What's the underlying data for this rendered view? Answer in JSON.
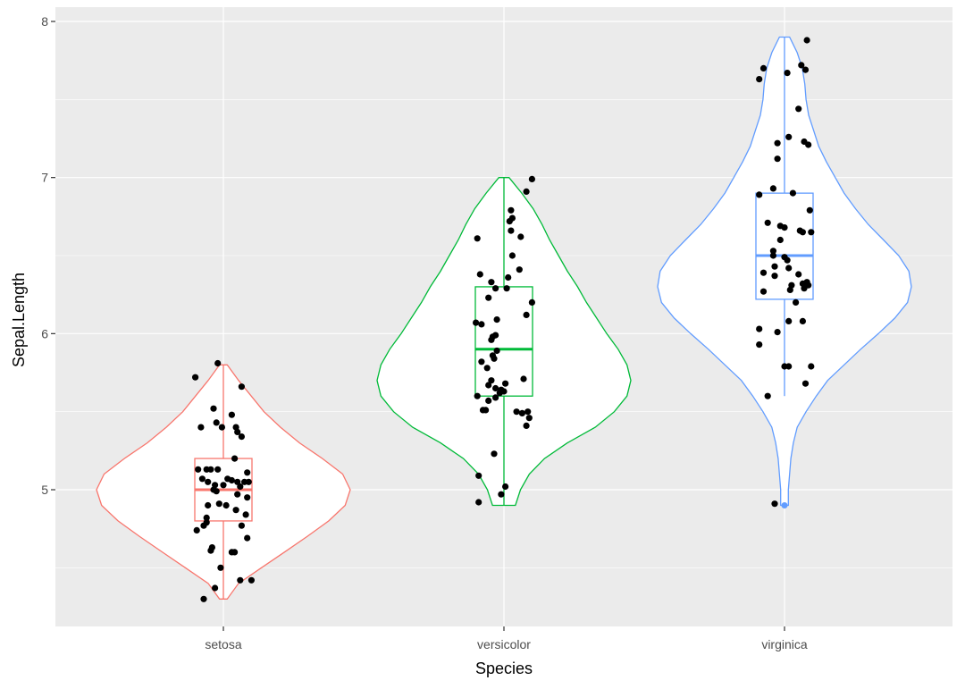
{
  "chart_data": {
    "type": "violin",
    "title": "",
    "xlabel": "Species",
    "ylabel": "Sepal.Length",
    "categories": [
      "setosa",
      "versicolor",
      "virginica"
    ],
    "ylim": [
      4.2,
      8.1
    ],
    "y_ticks": [
      5,
      6,
      7,
      8
    ],
    "y_tick_labels": [
      "5",
      "6",
      "7",
      "8"
    ],
    "grid": true,
    "legend": "none",
    "colors": {
      "panel_bg": "#ebebeb",
      "grid_major": "#ffffff",
      "setosa": "#f8766d",
      "versicolor": "#00ba38",
      "virginica": "#619cff",
      "points": "#000000"
    },
    "series": [
      {
        "category": "setosa",
        "color": "#f8766d",
        "box": {
          "min": 4.3,
          "q1": 4.8,
          "median": 5.0,
          "q3": 5.2,
          "max": 5.8
        },
        "outliers": [],
        "violin": [
          [
            4.3,
            0.03
          ],
          [
            4.4,
            0.12
          ],
          [
            4.5,
            0.3
          ],
          [
            4.6,
            0.48
          ],
          [
            4.7,
            0.66
          ],
          [
            4.8,
            0.83
          ],
          [
            4.9,
            0.96
          ],
          [
            5.0,
            1.0
          ],
          [
            5.1,
            0.94
          ],
          [
            5.2,
            0.78
          ],
          [
            5.3,
            0.6
          ],
          [
            5.4,
            0.45
          ],
          [
            5.5,
            0.32
          ],
          [
            5.6,
            0.22
          ],
          [
            5.7,
            0.12
          ],
          [
            5.8,
            0.03
          ]
        ],
        "points": [
          [
            -0.14,
            4.3
          ],
          [
            -0.06,
            4.37
          ],
          [
            -0.02,
            4.5
          ],
          [
            0.12,
            4.42
          ],
          [
            0.2,
            4.42
          ],
          [
            -0.09,
            4.61
          ],
          [
            -0.08,
            4.63
          ],
          [
            0.06,
            4.6
          ],
          [
            0.08,
            4.6
          ],
          [
            0.13,
            4.77
          ],
          [
            0.17,
            4.69
          ],
          [
            -0.19,
            4.74
          ],
          [
            -0.14,
            4.77
          ],
          [
            -0.12,
            4.79
          ],
          [
            -0.12,
            4.82
          ],
          [
            -0.11,
            4.9
          ],
          [
            -0.03,
            4.91
          ],
          [
            0.02,
            4.9
          ],
          [
            0.09,
            4.87
          ],
          [
            0.16,
            4.84
          ],
          [
            -0.18,
            5.13
          ],
          [
            -0.15,
            5.07
          ],
          [
            -0.11,
            5.05
          ],
          [
            -0.12,
            5.13
          ],
          [
            -0.07,
            5.0
          ],
          [
            -0.06,
            5.03
          ],
          [
            -0.09,
            5.13
          ],
          [
            -0.05,
            4.99
          ],
          [
            -0.04,
            5.13
          ],
          [
            0.0,
            5.03
          ],
          [
            0.03,
            5.07
          ],
          [
            0.06,
            5.06
          ],
          [
            0.08,
            5.2
          ],
          [
            0.1,
            5.05
          ],
          [
            0.1,
            4.97
          ],
          [
            0.12,
            5.02
          ],
          [
            0.15,
            5.05
          ],
          [
            0.17,
            5.11
          ],
          [
            0.18,
            5.05
          ],
          [
            0.17,
            4.95
          ],
          [
            -0.16,
            5.4
          ],
          [
            -0.07,
            5.52
          ],
          [
            -0.05,
            5.43
          ],
          [
            -0.01,
            5.4
          ],
          [
            0.06,
            5.48
          ],
          [
            0.09,
            5.4
          ],
          [
            0.1,
            5.37
          ],
          [
            0.13,
            5.34
          ],
          [
            0.13,
            5.66
          ],
          [
            -0.2,
            5.72
          ],
          [
            -0.04,
            5.81
          ]
        ]
      },
      {
        "category": "versicolor",
        "color": "#00ba38",
        "box": {
          "min": 4.9,
          "q1": 5.6,
          "median": 5.9,
          "q3": 6.3,
          "max": 7.0
        },
        "outliers": [],
        "violin": [
          [
            4.9,
            0.09
          ],
          [
            5.0,
            0.13
          ],
          [
            5.1,
            0.2
          ],
          [
            5.2,
            0.32
          ],
          [
            5.3,
            0.5
          ],
          [
            5.4,
            0.72
          ],
          [
            5.5,
            0.87
          ],
          [
            5.6,
            0.97
          ],
          [
            5.7,
            1.0
          ],
          [
            5.8,
            0.97
          ],
          [
            5.9,
            0.9
          ],
          [
            6.0,
            0.81
          ],
          [
            6.1,
            0.73
          ],
          [
            6.2,
            0.65
          ],
          [
            6.3,
            0.58
          ],
          [
            6.4,
            0.5
          ],
          [
            6.5,
            0.43
          ],
          [
            6.6,
            0.36
          ],
          [
            6.7,
            0.3
          ],
          [
            6.8,
            0.23
          ],
          [
            6.9,
            0.14
          ],
          [
            7.0,
            0.04
          ]
        ],
        "points": [
          [
            -0.18,
            4.92
          ],
          [
            -0.07,
            5.23
          ],
          [
            0.01,
            5.02
          ],
          [
            -0.02,
            4.97
          ],
          [
            -0.18,
            5.09
          ],
          [
            -0.15,
            5.51
          ],
          [
            -0.13,
            5.51
          ],
          [
            -0.19,
            5.6
          ],
          [
            -0.11,
            5.57
          ],
          [
            -0.12,
            5.78
          ],
          [
            -0.16,
            5.82
          ],
          [
            -0.11,
            5.67
          ],
          [
            -0.09,
            5.7
          ],
          [
            -0.06,
            5.59
          ],
          [
            -0.06,
            5.65
          ],
          [
            -0.03,
            5.62
          ],
          [
            -0.02,
            5.64
          ],
          [
            0.0,
            5.63
          ],
          [
            0.01,
            5.68
          ],
          [
            0.14,
            5.71
          ],
          [
            0.09,
            5.5
          ],
          [
            0.13,
            5.49
          ],
          [
            0.18,
            5.46
          ],
          [
            0.16,
            5.41
          ],
          [
            0.17,
            5.5
          ],
          [
            -0.16,
            6.06
          ],
          [
            -0.2,
            6.07
          ],
          [
            -0.09,
            5.96
          ],
          [
            -0.08,
            5.86
          ],
          [
            -0.05,
            5.89
          ],
          [
            -0.07,
            5.84
          ],
          [
            -0.08,
            5.98
          ],
          [
            -0.06,
            5.99
          ],
          [
            -0.05,
            6.09
          ],
          [
            -0.17,
            6.38
          ],
          [
            -0.19,
            6.61
          ],
          [
            -0.11,
            6.23
          ],
          [
            -0.09,
            6.33
          ],
          [
            -0.06,
            6.29
          ],
          [
            0.02,
            6.29
          ],
          [
            0.03,
            6.36
          ],
          [
            0.06,
            6.5
          ],
          [
            0.11,
            6.41
          ],
          [
            0.16,
            6.12
          ],
          [
            0.2,
            6.2
          ],
          [
            0.05,
            6.66
          ],
          [
            0.04,
            6.72
          ],
          [
            0.06,
            6.74
          ],
          [
            0.05,
            6.79
          ],
          [
            0.12,
            6.62
          ],
          [
            0.16,
            6.91
          ],
          [
            0.2,
            6.99
          ]
        ]
      },
      {
        "category": "virginica",
        "color": "#619cff",
        "box": {
          "min": 5.6,
          "q1": 6.22,
          "median": 6.5,
          "q3": 6.9,
          "max": 7.9
        },
        "outliers": [
          4.9
        ],
        "violin": [
          [
            4.9,
            0.03
          ],
          [
            5.0,
            0.03
          ],
          [
            5.1,
            0.04
          ],
          [
            5.2,
            0.05
          ],
          [
            5.3,
            0.07
          ],
          [
            5.4,
            0.1
          ],
          [
            5.5,
            0.17
          ],
          [
            5.6,
            0.25
          ],
          [
            5.7,
            0.34
          ],
          [
            5.8,
            0.47
          ],
          [
            5.9,
            0.6
          ],
          [
            6.0,
            0.74
          ],
          [
            6.1,
            0.87
          ],
          [
            6.2,
            0.97
          ],
          [
            6.3,
            1.0
          ],
          [
            6.4,
            0.98
          ],
          [
            6.5,
            0.9
          ],
          [
            6.6,
            0.78
          ],
          [
            6.7,
            0.66
          ],
          [
            6.8,
            0.56
          ],
          [
            6.9,
            0.47
          ],
          [
            7.0,
            0.4
          ],
          [
            7.1,
            0.33
          ],
          [
            7.2,
            0.27
          ],
          [
            7.3,
            0.23
          ],
          [
            7.4,
            0.19
          ],
          [
            7.5,
            0.17
          ],
          [
            7.6,
            0.16
          ],
          [
            7.7,
            0.14
          ],
          [
            7.8,
            0.1
          ],
          [
            7.9,
            0.04
          ]
        ],
        "points": [
          [
            -0.07,
            4.91
          ],
          [
            -0.12,
            5.6
          ],
          [
            -0.18,
            5.93
          ],
          [
            -0.18,
            6.03
          ],
          [
            -0.15,
            6.27
          ],
          [
            -0.15,
            6.39
          ],
          [
            -0.08,
            6.5
          ],
          [
            -0.08,
            6.53
          ],
          [
            -0.07,
            6.43
          ],
          [
            -0.07,
            6.37
          ],
          [
            -0.03,
            6.6
          ],
          [
            -0.03,
            6.69
          ],
          [
            0.0,
            6.68
          ],
          [
            0.0,
            6.49
          ],
          [
            0.02,
            6.47
          ],
          [
            0.03,
            6.42
          ],
          [
            0.04,
            6.28
          ],
          [
            0.05,
            6.31
          ],
          [
            0.06,
            6.9
          ],
          [
            0.08,
            6.2
          ],
          [
            0.1,
            6.38
          ],
          [
            0.11,
            6.66
          ],
          [
            0.13,
            6.65
          ],
          [
            0.13,
            6.32
          ],
          [
            0.14,
            6.29
          ],
          [
            0.16,
            6.33
          ],
          [
            0.17,
            6.31
          ],
          [
            0.19,
            6.65
          ],
          [
            0.18,
            6.79
          ],
          [
            -0.18,
            6.89
          ],
          [
            -0.12,
            6.71
          ],
          [
            -0.08,
            6.93
          ],
          [
            -0.05,
            7.12
          ],
          [
            -0.05,
            7.22
          ],
          [
            0.03,
            7.26
          ],
          [
            0.1,
            7.44
          ],
          [
            0.14,
            7.23
          ],
          [
            0.17,
            7.21
          ],
          [
            -0.18,
            7.63
          ],
          [
            -0.15,
            7.7
          ],
          [
            0.02,
            7.67
          ],
          [
            0.12,
            7.72
          ],
          [
            0.15,
            7.69
          ],
          [
            0.16,
            7.88
          ],
          [
            0.0,
            5.79
          ],
          [
            0.03,
            5.79
          ],
          [
            0.15,
            5.68
          ],
          [
            0.19,
            5.79
          ],
          [
            -0.05,
            6.01
          ],
          [
            0.03,
            6.08
          ],
          [
            0.13,
            6.08
          ]
        ]
      }
    ]
  }
}
